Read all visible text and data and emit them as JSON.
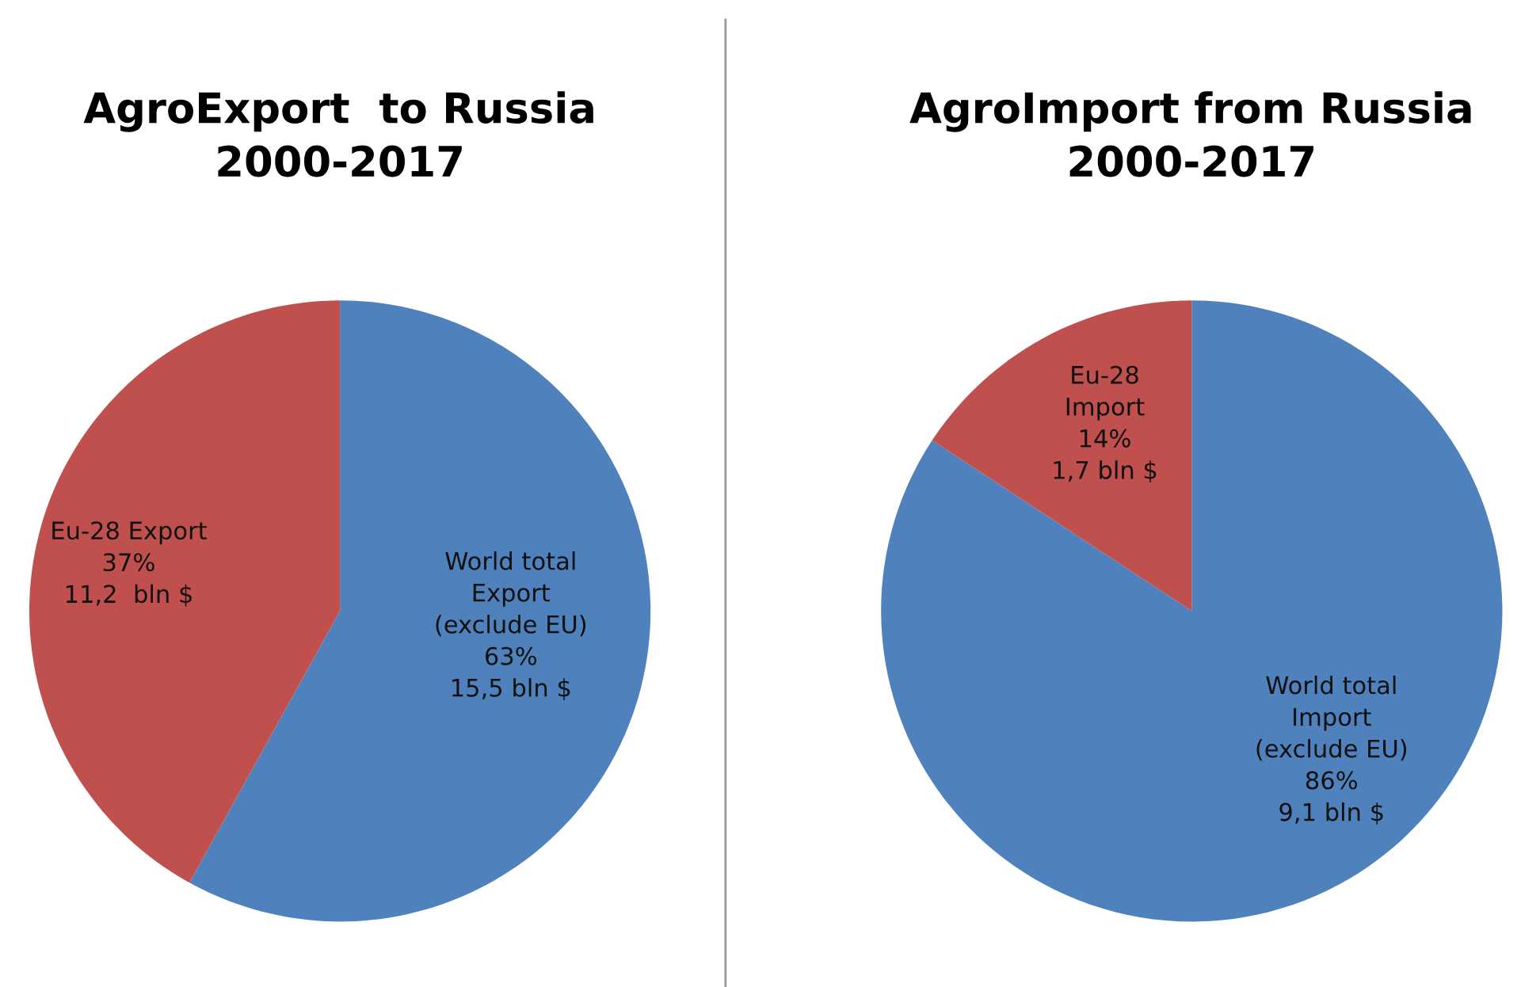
{
  "chart_data": [
    {
      "type": "pie",
      "title": "AgroExport  to Russia\n2000-2017",
      "categories": [
        "World total\nExport\n(exclude EU)",
        "Eu-28 Export"
      ],
      "values": [
        15.5,
        11.2
      ],
      "colors": [
        "#4f81bd",
        "#c0504d"
      ],
      "value_labels": [
        "63%\n15,5 bln $",
        "37%\n11,2  bln $"
      ]
    },
    {
      "type": "pie",
      "title": "AgroImport from Russia\n2000-2017",
      "categories": [
        "World total\nImport\n(exclude EU)",
        "Eu-28\nImport"
      ],
      "values": [
        9.1,
        1.7
      ],
      "colors": [
        "#4f81bd",
        "#c0504d"
      ],
      "value_labels": [
        "86%\n9,1 bln $",
        "14%\n1,7 bln $"
      ]
    }
  ]
}
